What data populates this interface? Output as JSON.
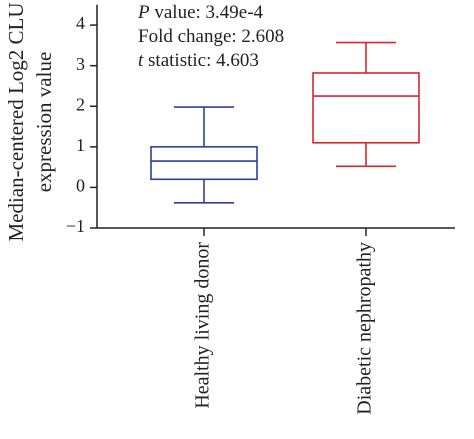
{
  "chart_data": {
    "type": "box",
    "ylabel": [
      "Median-centered Log2 CLU",
      "expression value"
    ],
    "annotations": [
      [
        {
          "text": "P",
          "italic": true
        },
        {
          "text": " value: 3.49e-4"
        }
      ],
      [
        {
          "text": "Fold change: 2.608"
        }
      ],
      [
        {
          "text": "t",
          "italic": true
        },
        {
          "text": " statistic: 4.603"
        }
      ]
    ],
    "categories": [
      "Healthy living donor",
      "Diabetic nephropathy"
    ],
    "boxes": [
      {
        "whisker_low": -0.38,
        "q1": 0.2,
        "median": 0.65,
        "q3": 1.0,
        "whisker_high": 1.98,
        "color": "#2b3f9f"
      },
      {
        "whisker_low": 0.52,
        "q1": 1.1,
        "median": 2.25,
        "q3": 2.82,
        "whisker_high": 3.57,
        "color": "#d9262b"
      }
    ],
    "ylim": [
      -1,
      4.5
    ],
    "yticks": [
      {
        "value": -1,
        "label": "−1"
      },
      0,
      1,
      2,
      3,
      4
    ]
  }
}
